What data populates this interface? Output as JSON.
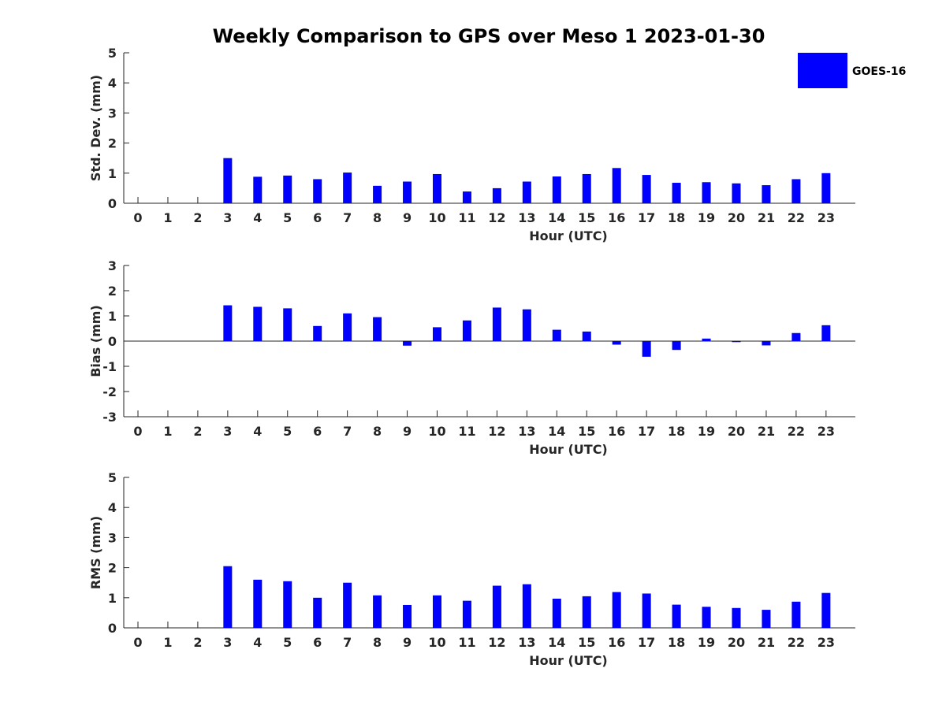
{
  "chart_data": {
    "title": "Weekly Comparison to GPS over Meso 1 2023-01-30",
    "legend": {
      "label": "GOES-16",
      "placement": "top-right"
    },
    "series_color": "#0000ff",
    "subplots": [
      {
        "type": "bar",
        "ylabel": "Std. Dev. (mm)",
        "xlabel": "Hour (UTC)",
        "ylim": [
          0,
          5
        ],
        "yticks": [
          0,
          1,
          2,
          3,
          4,
          5
        ],
        "x": [
          0,
          1,
          2,
          3,
          4,
          5,
          6,
          7,
          8,
          9,
          10,
          11,
          12,
          13,
          14,
          15,
          16,
          17,
          18,
          19,
          20,
          21,
          22,
          23
        ],
        "values": [
          null,
          null,
          null,
          1.5,
          0.88,
          0.92,
          0.8,
          1.02,
          0.58,
          0.72,
          0.97,
          0.39,
          0.5,
          0.72,
          0.89,
          0.97,
          1.17,
          0.94,
          0.68,
          0.7,
          0.66,
          0.6,
          0.8,
          1.0
        ]
      },
      {
        "type": "bar",
        "ylabel": "Bias (mm)",
        "xlabel": "Hour (UTC)",
        "ylim": [
          -3,
          3
        ],
        "yticks": [
          -3,
          -2,
          -1,
          0,
          1,
          2,
          3
        ],
        "x": [
          0,
          1,
          2,
          3,
          4,
          5,
          6,
          7,
          8,
          9,
          10,
          11,
          12,
          13,
          14,
          15,
          16,
          17,
          18,
          19,
          20,
          21,
          22,
          23
        ],
        "values": [
          null,
          null,
          null,
          1.42,
          1.36,
          1.3,
          0.6,
          1.1,
          0.95,
          -0.18,
          0.55,
          0.82,
          1.33,
          1.26,
          0.45,
          0.38,
          -0.14,
          -0.62,
          -0.35,
          0.1,
          -0.04,
          -0.17,
          0.32,
          0.63
        ]
      },
      {
        "type": "bar",
        "ylabel": "RMS (mm)",
        "xlabel": "Hour (UTC)",
        "ylim": [
          0,
          5
        ],
        "yticks": [
          0,
          1,
          2,
          3,
          4,
          5
        ],
        "x": [
          0,
          1,
          2,
          3,
          4,
          5,
          6,
          7,
          8,
          9,
          10,
          11,
          12,
          13,
          14,
          15,
          16,
          17,
          18,
          19,
          20,
          21,
          22,
          23
        ],
        "values": [
          null,
          null,
          null,
          2.05,
          1.6,
          1.55,
          1.0,
          1.5,
          1.08,
          0.76,
          1.08,
          0.9,
          1.4,
          1.45,
          0.97,
          1.05,
          1.19,
          1.14,
          0.77,
          0.7,
          0.66,
          0.6,
          0.87,
          1.16
        ]
      }
    ]
  }
}
